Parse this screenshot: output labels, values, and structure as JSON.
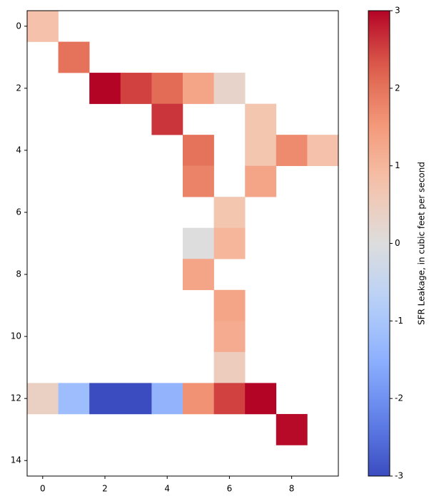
{
  "chart_data": {
    "type": "heatmap",
    "cmap": "coolwarm",
    "clim": [
      -3,
      3
    ],
    "xlim": [
      -0.5,
      9.5
    ],
    "ylim": [
      14.5,
      -0.5
    ],
    "xticks": [
      0,
      2,
      4,
      6,
      8
    ],
    "yticks": [
      0,
      2,
      4,
      6,
      8,
      10,
      12,
      14
    ],
    "colorbar_label": "SFR Leakage, in cubic feet per second",
    "colorbar_ticks": [
      -3,
      -2,
      -1,
      0,
      1,
      2,
      3
    ],
    "values": [
      [
        0.8,
        null,
        null,
        null,
        null,
        null,
        null,
        null,
        null,
        null
      ],
      [
        null,
        2.0,
        null,
        null,
        null,
        null,
        null,
        null,
        null,
        null
      ],
      [
        null,
        null,
        3.0,
        2.5,
        2.1,
        1.3,
        0.3,
        null,
        null,
        null
      ],
      [
        null,
        null,
        null,
        null,
        2.6,
        null,
        null,
        0.7,
        null,
        null
      ],
      [
        null,
        null,
        null,
        null,
        null,
        2.0,
        null,
        0.7,
        1.7,
        0.8
      ],
      [
        null,
        null,
        null,
        null,
        null,
        1.8,
        null,
        1.3,
        null,
        null
      ],
      [
        null,
        null,
        null,
        null,
        null,
        null,
        0.7,
        null,
        null,
        null
      ],
      [
        null,
        null,
        null,
        null,
        null,
        0.0,
        1.0,
        null,
        null,
        null
      ],
      [
        null,
        null,
        null,
        null,
        null,
        1.3,
        null,
        null,
        null,
        null
      ],
      [
        null,
        null,
        null,
        null,
        null,
        null,
        1.3,
        null,
        null,
        null
      ],
      [
        null,
        null,
        null,
        null,
        null,
        null,
        1.2,
        null,
        null,
        null
      ],
      [
        null,
        null,
        null,
        null,
        null,
        null,
        0.5,
        null,
        null,
        null
      ],
      [
        0.4,
        -1.2,
        -3.0,
        -3.0,
        -1.4,
        1.6,
        2.5,
        3.0,
        null,
        null
      ],
      [
        null,
        null,
        null,
        null,
        null,
        null,
        null,
        null,
        2.95,
        null
      ],
      [
        null,
        null,
        null,
        null,
        null,
        null,
        null,
        null,
        null,
        null
      ]
    ]
  }
}
